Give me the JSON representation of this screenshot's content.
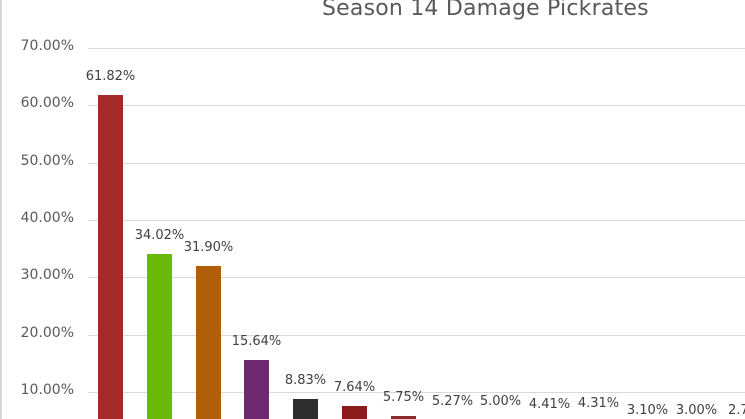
{
  "chart_data": {
    "type": "bar",
    "title": "Season 14 Damage Pickrates",
    "xlabel": "",
    "ylabel": "",
    "ylim": [
      0,
      0.7
    ],
    "yticks": [
      "10.00%",
      "20.00%",
      "30.00%",
      "40.00%",
      "50.00%",
      "60.00%",
      "70.00%"
    ],
    "grid": true,
    "legend": null,
    "categories": [],
    "values": [
      61.82,
      34.02,
      31.9,
      15.64,
      8.83,
      7.64,
      5.75,
      5.27,
      5.0,
      4.41,
      4.31,
      3.1,
      3.0,
      2.7
    ],
    "labels": [
      "61.82%",
      "34.02%",
      "31.90%",
      "15.64%",
      "8.83%",
      "7.64%",
      "5.75%",
      "5.27%",
      "5.00%",
      "4.41%",
      "4.31%",
      "3.10%",
      "3.00%",
      "2.7"
    ],
    "colors": [
      "#a52a2a",
      "#6aba0a",
      "#b05f08",
      "#6e2a6e",
      "#2d2d2d",
      "#8b1a1a",
      "#8b2a2a",
      "#cccccc",
      "#cccccc",
      "#cccccc",
      "#cccccc",
      "#cccccc",
      "#cccccc",
      "#cccccc"
    ]
  }
}
